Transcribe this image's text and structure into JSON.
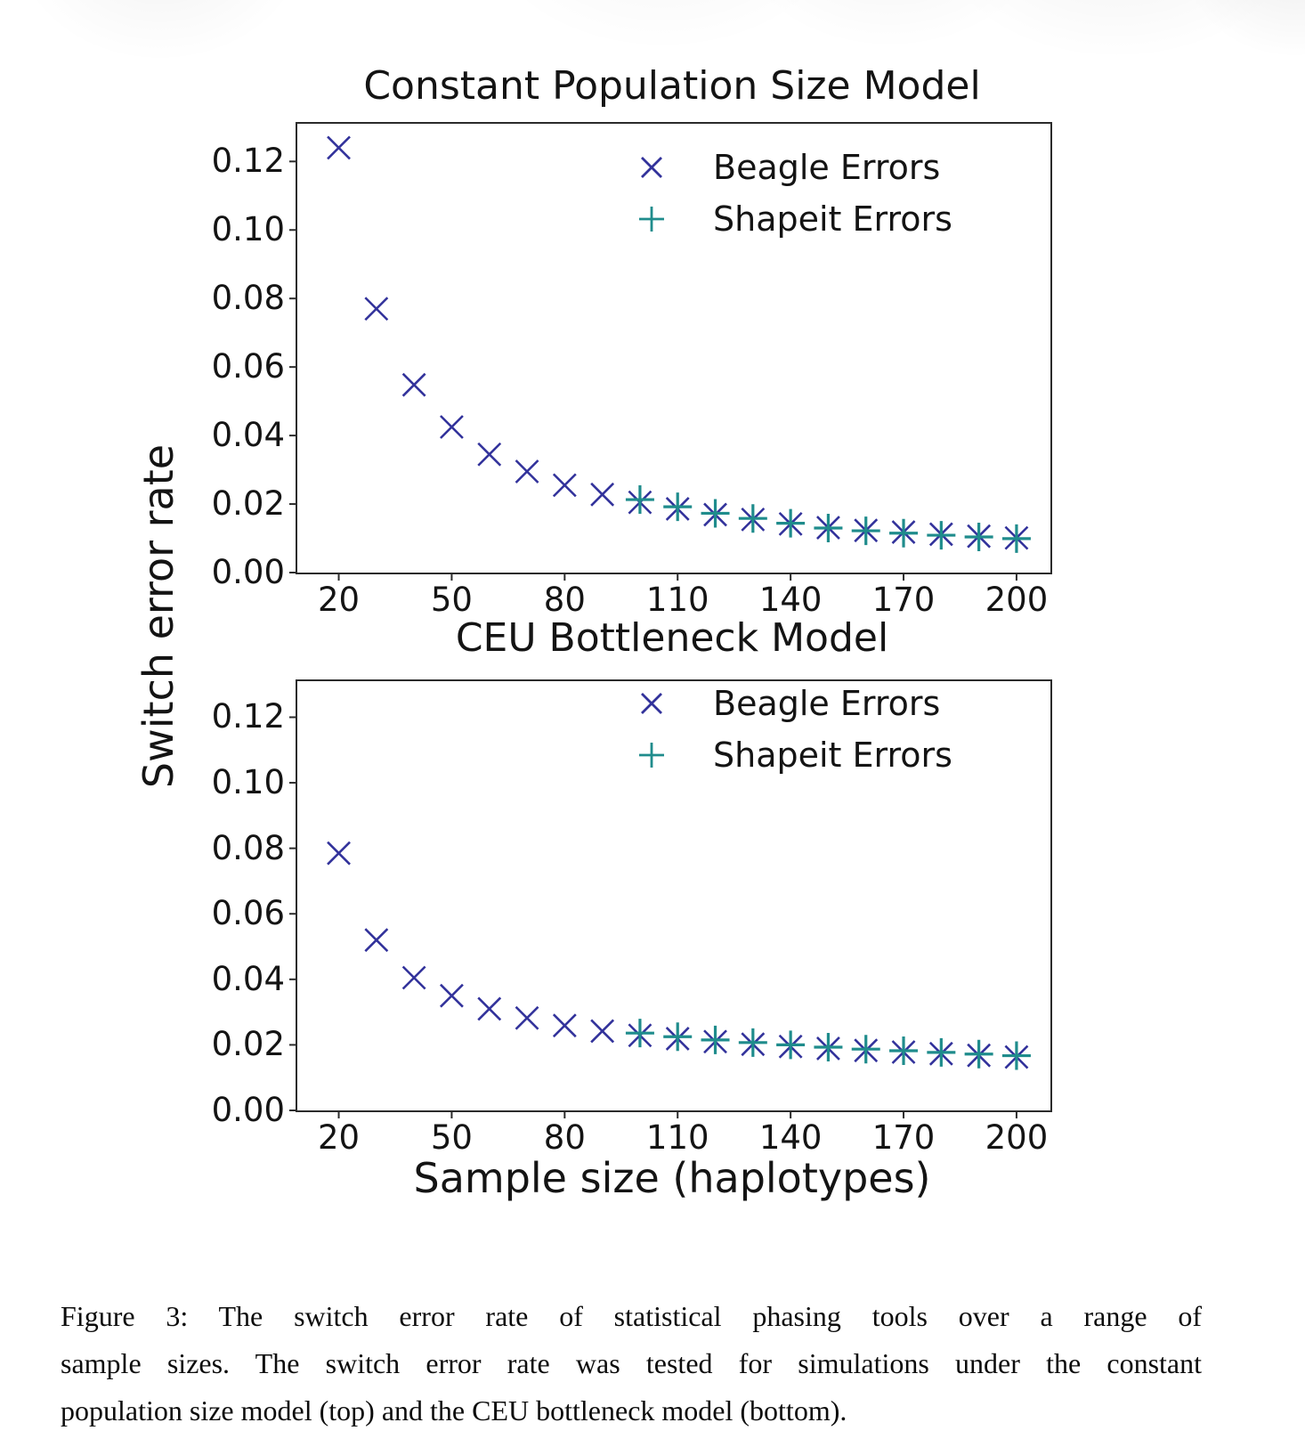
{
  "figure": {
    "ylabel": "Switch error rate",
    "xlabel": "Sample size (haplotypes)"
  },
  "colors": {
    "beagle": "#32329B",
    "shapeit": "#1F8C8C",
    "axis": "#2b2b2b",
    "text": "#141414"
  },
  "caption": {
    "lines": [
      "Figure 3:  The switch error rate of statistical phasing tools over a range of",
      "sample sizes.  The switch error rate was tested for simulations under the constant",
      "population size model (top) and the CEU bottleneck model (bottom)."
    ]
  },
  "chart_data": [
    {
      "type": "scatter",
      "title": "Constant Population Size Model",
      "xlabel": "Sample size (haplotypes)",
      "ylabel": "Switch error rate",
      "xlim": [
        9,
        209
      ],
      "ylim": [
        0,
        0.131
      ],
      "grid": false,
      "legend_position": "upper right",
      "xticks": [
        20,
        50,
        80,
        110,
        140,
        170,
        200
      ],
      "xtick_labels": [
        "20",
        "50",
        "80",
        "110",
        "140",
        "170",
        "200"
      ],
      "yticks": [
        0.0,
        0.02,
        0.04,
        0.06,
        0.08,
        0.1,
        0.12
      ],
      "ytick_labels": [
        "0.00",
        "0.02",
        "0.04",
        "0.06",
        "0.08",
        "0.10",
        "0.12"
      ],
      "legend": [
        {
          "label": "Beagle Errors",
          "marker": "x",
          "color": "#32329B"
        },
        {
          "label": "Shapeit Errors",
          "marker": "+",
          "color": "#1F8C8C"
        }
      ],
      "series": [
        {
          "name": "Beagle Errors",
          "marker": "x",
          "color": "#32329B",
          "x": [
            20,
            30,
            40,
            50,
            60,
            70,
            80,
            90,
            100,
            110,
            120,
            130,
            140,
            150,
            160,
            170,
            180,
            190,
            200
          ],
          "y": [
            0.124,
            0.077,
            0.0548,
            0.0425,
            0.0345,
            0.0295,
            0.0255,
            0.0228,
            0.0205,
            0.0186,
            0.0169,
            0.0155,
            0.0142,
            0.0131,
            0.0123,
            0.0118,
            0.0112,
            0.0106,
            0.0101
          ]
        },
        {
          "name": "Shapeit Errors",
          "marker": "+",
          "color": "#1F8C8C",
          "x": [
            100,
            110,
            120,
            130,
            140,
            150,
            160,
            170,
            180,
            190,
            200
          ],
          "y": [
            0.0213,
            0.0192,
            0.0173,
            0.0158,
            0.0144,
            0.013,
            0.0122,
            0.0115,
            0.0109,
            0.0104,
            0.0099
          ]
        }
      ]
    },
    {
      "type": "scatter",
      "title": "CEU Bottleneck Model",
      "xlabel": "Sample size (haplotypes)",
      "ylabel": "Switch error rate",
      "xlim": [
        9,
        209
      ],
      "ylim": [
        0,
        0.131
      ],
      "grid": false,
      "legend_position": "upper right",
      "xticks": [
        20,
        50,
        80,
        110,
        140,
        170,
        200
      ],
      "xtick_labels": [
        "20",
        "50",
        "80",
        "110",
        "140",
        "170",
        "200"
      ],
      "yticks": [
        0.0,
        0.02,
        0.04,
        0.06,
        0.08,
        0.1,
        0.12
      ],
      "ytick_labels": [
        "0.00",
        "0.02",
        "0.04",
        "0.06",
        "0.08",
        "0.10",
        "0.12"
      ],
      "legend": [
        {
          "label": "Beagle Errors",
          "marker": "x",
          "color": "#32329B"
        },
        {
          "label": "Shapeit Errors",
          "marker": "+",
          "color": "#1F8C8C"
        }
      ],
      "series": [
        {
          "name": "Beagle Errors",
          "marker": "x",
          "color": "#32329B",
          "x": [
            20,
            30,
            40,
            50,
            60,
            70,
            80,
            90,
            100,
            110,
            120,
            130,
            140,
            150,
            160,
            170,
            180,
            190,
            200
          ],
          "y": [
            0.0785,
            0.052,
            0.0405,
            0.035,
            0.031,
            0.0282,
            0.0259,
            0.0242,
            0.0229,
            0.0219,
            0.021,
            0.0202,
            0.0195,
            0.0189,
            0.0183,
            0.0178,
            0.0173,
            0.0168,
            0.0163
          ]
        },
        {
          "name": "Shapeit Errors",
          "marker": "+",
          "color": "#1F8C8C",
          "x": [
            100,
            110,
            120,
            130,
            140,
            150,
            160,
            170,
            180,
            190,
            200
          ],
          "y": [
            0.0236,
            0.0225,
            0.0215,
            0.0207,
            0.02,
            0.0193,
            0.0187,
            0.0182,
            0.0177,
            0.0172,
            0.0167
          ]
        }
      ]
    }
  ]
}
